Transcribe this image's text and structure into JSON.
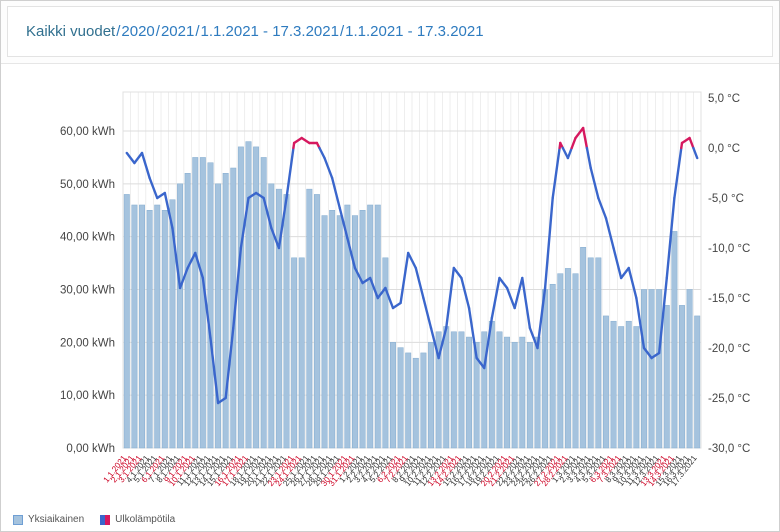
{
  "header": {
    "title_root": "Kaikki vuodet",
    "separator": "/",
    "links": [
      "2020",
      "2021",
      "1.1.2021 - 17.3.2021",
      "1.1.2021 - 17.3.2021"
    ]
  },
  "chart_data": {
    "type": "bar+line",
    "title": "",
    "categories": [
      "1.1.2021",
      "2.1.2021",
      "3.1.2021",
      "4.1.2021",
      "5.1.2021",
      "6.1.2021",
      "7.1.2021",
      "8.1.2021",
      "9.1.2021",
      "10.1.2021",
      "11.1.2021",
      "12.1.2021",
      "13.1.2021",
      "14.1.2021",
      "15.1.2021",
      "16.1.2021",
      "17.1.2021",
      "18.1.2021",
      "19.1.2021",
      "20.1.2021",
      "21.1.2021",
      "22.1.2021",
      "23.1.2021",
      "24.1.2021",
      "25.1.2021",
      "26.1.2021",
      "27.1.2021",
      "28.1.2021",
      "29.1.2021",
      "30.1.2021",
      "31.1.2021",
      "1.2.2021",
      "2.2.2021",
      "3.2.2021",
      "4.2.2021",
      "5.2.2021",
      "6.2.2021",
      "7.2.2021",
      "8.2.2021",
      "9.2.2021",
      "10.2.2021",
      "11.2.2021",
      "12.2.2021",
      "13.2.2021",
      "14.2.2021",
      "15.2.2021",
      "16.2.2021",
      "17.2.2021",
      "18.2.2021",
      "19.2.2021",
      "20.2.2021",
      "21.2.2021",
      "22.2.2021",
      "23.2.2021",
      "24.2.2021",
      "25.2.2021",
      "26.2.2021",
      "27.2.2021",
      "28.2.2021",
      "1.3.2021",
      "2.3.2021",
      "3.3.2021",
      "4.3.2021",
      "5.3.2021",
      "6.3.2021",
      "7.3.2021",
      "8.3.2021",
      "9.3.2021",
      "10.3.2021",
      "11.3.2021",
      "12.3.2021",
      "13.3.2021",
      "14.3.2021",
      "15.3.2021",
      "16.3.2021",
      "17.3.2021"
    ],
    "red_label_flags": [
      1,
      1,
      1,
      0,
      0,
      1,
      0,
      0,
      1,
      1,
      0,
      0,
      0,
      0,
      0,
      1,
      1,
      0,
      0,
      0,
      0,
      0,
      1,
      1,
      0,
      0,
      0,
      0,
      0,
      1,
      1,
      0,
      0,
      0,
      0,
      0,
      1,
      1,
      0,
      0,
      0,
      0,
      0,
      1,
      1,
      0,
      0,
      0,
      0,
      0,
      1,
      1,
      0,
      0,
      0,
      0,
      0,
      1,
      1,
      0,
      0,
      0,
      0,
      0,
      1,
      1,
      0,
      0,
      0,
      0,
      0,
      1,
      1,
      0,
      0,
      0
    ],
    "series": [
      {
        "name": "Yksiaikainen",
        "type": "bar",
        "unit": "kWh",
        "color": "#a5c3de",
        "stroke": "#85add0",
        "values": [
          48,
          46,
          46,
          45,
          46,
          45,
          47,
          50,
          52,
          55,
          55,
          54,
          50,
          52,
          53,
          57,
          58,
          57,
          55,
          50,
          49,
          48,
          36,
          36,
          49,
          48,
          44,
          45,
          44,
          46,
          44,
          45,
          46,
          46,
          36,
          20,
          19,
          18,
          17,
          18,
          20,
          22,
          23,
          22,
          22,
          21,
          20,
          22,
          24,
          22,
          21,
          20,
          21,
          20,
          21,
          30,
          31,
          33,
          34,
          33,
          38,
          36,
          36,
          25,
          24,
          23,
          24,
          23,
          30,
          30,
          30,
          27,
          41,
          27,
          30,
          25
        ]
      },
      {
        "name": "Ulkolämpötila",
        "type": "line",
        "unit": "°C",
        "color": "#3a66cc",
        "above_zero_color": "#d6185f",
        "values": [
          -0.5,
          -1.5,
          -0.5,
          -3,
          -5,
          -4.5,
          -8,
          -14,
          -12,
          -10.5,
          -13,
          -19,
          -25.5,
          -25,
          -18,
          -10,
          -5,
          -4.5,
          -5,
          -8,
          -10,
          -5,
          0.5,
          1,
          0.5,
          0.5,
          -1,
          -3,
          -6,
          -9,
          -12,
          -13.5,
          -13,
          -15,
          -14,
          -16,
          -15.5,
          -10.5,
          -12,
          -15,
          -18,
          -21,
          -18,
          -12,
          -13,
          -16,
          -21,
          -22,
          -17,
          -13,
          -14,
          -16,
          -13,
          -18,
          -20,
          -14,
          -5,
          0.5,
          -1,
          1,
          2,
          -2,
          -5,
          -7,
          -10,
          -13,
          -12,
          -15,
          -20,
          -21,
          -20.5,
          -13,
          -5,
          0.5,
          1,
          -1
        ]
      }
    ],
    "left_axis": {
      "unit": "kWh",
      "min": 0,
      "max": 60,
      "step": 10,
      "labels": [
        "0,00 kWh",
        "10,00 kWh",
        "20,00 kWh",
        "30,00 kWh",
        "40,00 kWh",
        "50,00 kWh",
        "60,00 kWh"
      ]
    },
    "right_axis": {
      "unit": "°C",
      "min": -30,
      "max": 5,
      "step": 5,
      "labels": [
        "5,0 °C",
        "0,0 °C",
        "-5,0 °C",
        "-10,0 °C",
        "-15,0 °C",
        "-20,0 °C",
        "-25,0 °C",
        "-30,0 °C"
      ]
    },
    "legend": [
      {
        "label": "Yksiaikainen"
      },
      {
        "label": "Ulkolämpötila"
      }
    ],
    "colors": {
      "grid": "#dcdcdc",
      "vgrid": "#e7e7e7",
      "axis_text": "#444444",
      "x_label": "#333333",
      "x_label_red": "#cc0022"
    },
    "layout": {
      "grid": true,
      "legend_position": "bottom-left"
    }
  }
}
